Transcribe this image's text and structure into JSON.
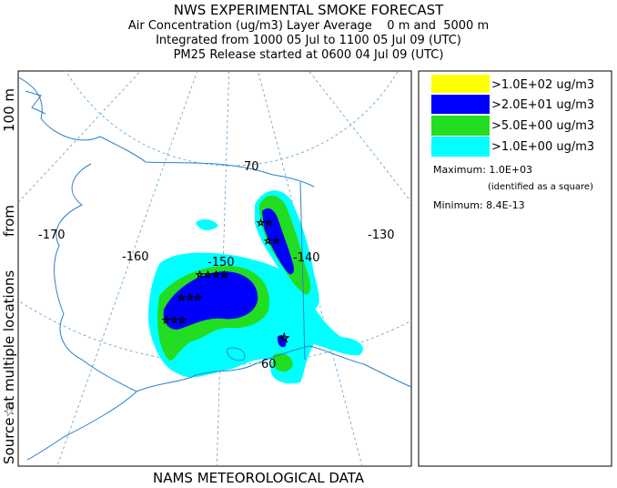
{
  "header": {
    "title": "NWS EXPERIMENTAL SMOKE FORECAST",
    "lines": [
      "Air Concentration (ug/m3) Layer Average    0 m and  5000 m",
      "Integrated from 1000 05 Jul to 1100 05 Jul 09 (UTC)",
      "PM25 Release started at 0600 04 Jul 09 (UTC)"
    ]
  },
  "side_label": [
    "Source☆",
    "at multiple locations",
    "from",
    "100 m"
  ],
  "footer": "NAMS METEOROLOGICAL DATA",
  "map": {
    "longitude_labels": [
      "-170",
      "-160",
      "-150",
      "-140",
      "-130"
    ],
    "latitude_labels": [
      "70",
      "60"
    ]
  },
  "legend": {
    "items": [
      {
        "label": ">1.0E+02 ug/m3",
        "color": "#ffff00"
      },
      {
        "label": ">2.0E+01 ug/m3",
        "color": "#0000ff"
      },
      {
        "label": ">5.0E+00 ug/m3",
        "color": "#22dd22"
      },
      {
        "label": ">1.0E+00 ug/m3",
        "color": "#00ffff"
      }
    ],
    "maximum": "Maximum: 1.0E+03",
    "maximum_note": "(identified as a square)",
    "minimum": "Minimum: 8.4E-13"
  }
}
